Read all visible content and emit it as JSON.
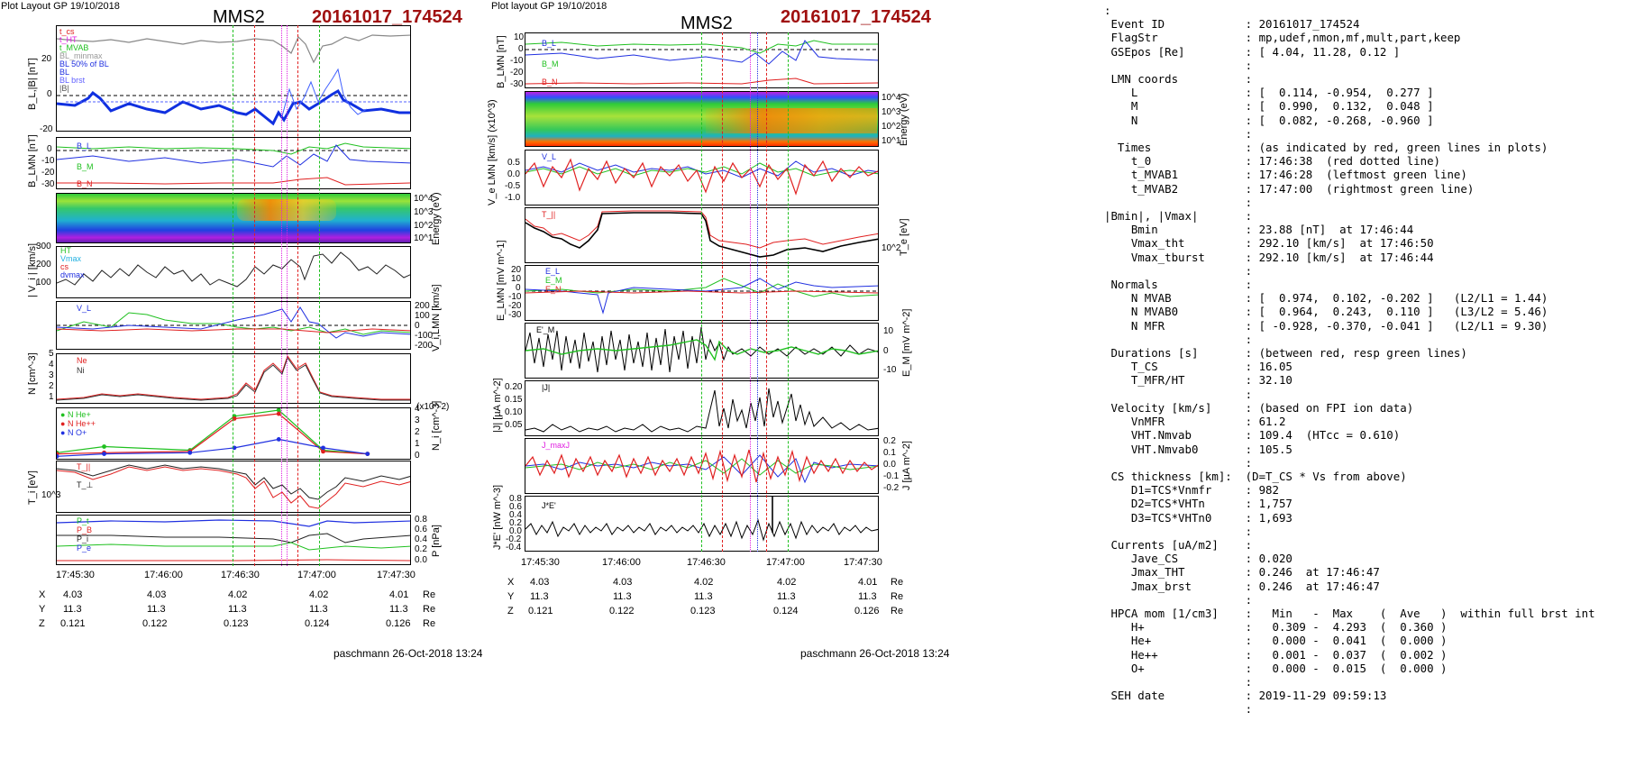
{
  "left": {
    "header": "Plot Layout GP 19/10/2018",
    "spacecraft": "MMS2",
    "event": "20161017_174524",
    "footer": "paschmann 26-Oct-2018 13:24",
    "panels": {
      "bl": {
        "ylabel": "B_L,|B| [nT]",
        "ticks": [
          "20",
          "0",
          "-20"
        ],
        "legend": [
          "t_cs",
          "t_HT",
          "t_MVAB",
          "BL_minmax",
          "BL 50% of BL",
          "BL",
          "BL brst",
          "|B|"
        ]
      },
      "blmn": {
        "ylabel": "B_LMN [nT]",
        "ticks": [
          "0",
          "-10",
          "-20",
          "-30"
        ],
        "labels": [
          "B_L",
          "B_M",
          "B_N"
        ]
      },
      "spec": {
        "ylabel": "Energy (eV)",
        "ticks": [
          "10^4",
          "10^3",
          "10^2",
          "10^1"
        ]
      },
      "vi": {
        "ylabel": "| V_i | [km/s]",
        "ticks": [
          "300",
          "200",
          "100"
        ],
        "legend": [
          "HT",
          "Vmax",
          "cs",
          "dvmax"
        ]
      },
      "vlmn": {
        "ylabel": "V_i,LMN [km/s]",
        "ticks": [
          "200",
          "100",
          "0",
          "-100",
          "-200"
        ],
        "labels": [
          "V_L"
        ]
      },
      "n": {
        "ylabel": "N [cm^-3]",
        "ticks": [
          "5",
          "4",
          "3",
          "2",
          "1"
        ],
        "legend": [
          "Ne",
          "Ni"
        ]
      },
      "hpca": {
        "ylabel": "N_i [cm^-3]",
        "ticks": [
          "4",
          "3",
          "2",
          "1",
          "0"
        ],
        "exp": "(x10^-2)",
        "legend": [
          "N  He+",
          "N  He++",
          "N  O+"
        ]
      },
      "ti": {
        "ylabel": "T_i [eV]",
        "ticks": [
          "10^3"
        ],
        "labels": [
          "T_||",
          "T_⊥"
        ]
      },
      "p": {
        "ylabel": "P [nPa]",
        "ticks": [
          "0.8",
          "0.6",
          "0.4",
          "0.2",
          "0.0"
        ],
        "labels": [
          "P_t",
          "P_B",
          "P_i",
          "P_e"
        ]
      }
    },
    "xticks": [
      "17:45:30",
      "17:46:00",
      "17:46:30",
      "17:47:00",
      "17:47:30"
    ],
    "pos": {
      "X": [
        "4.03",
        "4.03",
        "4.02",
        "4.02",
        "4.01",
        "Re"
      ],
      "Y": [
        "11.3",
        "11.3",
        "11.3",
        "11.3",
        "11.3",
        "Re"
      ],
      "Z": [
        "0.121",
        "0.122",
        "0.123",
        "0.124",
        "0.126",
        "Re"
      ]
    }
  },
  "middle": {
    "header": "Plot layout GP 19/10/2018",
    "spacecraft": "MMS2",
    "event": "20161017_174524",
    "footer": "paschmann 26-Oct-2018 13:24",
    "panels": {
      "blmn": {
        "ylabel": "B_LMN [nT]",
        "ticks": [
          "10",
          "0",
          "-10",
          "-20",
          "-30"
        ],
        "labels": [
          "B_L",
          "B_M",
          "B_N"
        ]
      },
      "spec": {
        "ylabel": "Energy (eV)",
        "ticks": [
          "10^4",
          "10^3",
          "10^2",
          "10^1"
        ]
      },
      "ve": {
        "ylabel": "V_e LMN [km/s] (x10^3)",
        "ticks": [
          "0.5",
          "0.0",
          "-0.5",
          "-1.0"
        ],
        "labels": [
          "V_L"
        ]
      },
      "te": {
        "ylabel": "T_e [eV]",
        "ticks": [
          "10^2"
        ],
        "labels": [
          "T_||"
        ]
      },
      "elmn": {
        "ylabel": "E_LMN [mV m^-1]",
        "ticks": [
          "20",
          "10",
          "0",
          "-10",
          "-20",
          "-30"
        ],
        "labels": [
          "E_L",
          "E_M",
          "E_N"
        ]
      },
      "em": {
        "ylabel": "E_M [mV m^-2]",
        "ticks": [
          "10",
          "0",
          "-10"
        ],
        "labels": [
          "E'_M"
        ]
      },
      "j": {
        "ylabel": "|J| [µA m^-2]",
        "ticks": [
          "0.20",
          "0.15",
          "0.10",
          "0.05"
        ],
        "labels": [
          "|J|"
        ]
      },
      "jlmn": {
        "ylabel": "J [µA m^-2]",
        "ticks": [
          "0.2",
          "0.1",
          "0.0",
          "-0.1",
          "-0.2"
        ],
        "labels": [
          "J_maxJ"
        ]
      },
      "je": {
        "ylabel": "J*E' [nW m^-3]",
        "ticks": [
          "0.8",
          "0.6",
          "0.4",
          "0.2",
          "0.0",
          "-0.2",
          "-0.4"
        ],
        "labels": [
          "J*E'"
        ]
      }
    },
    "xticks": [
      "17:45:30",
      "17:46:00",
      "17:46:30",
      "17:47:00",
      "17:47:30"
    ],
    "pos": {
      "X": [
        "4.03",
        "4.03",
        "4.02",
        "4.02",
        "4.01",
        "Re"
      ],
      "Y": [
        "11.3",
        "11.3",
        "11.3",
        "11.3",
        "11.3",
        "Re"
      ],
      "Z": [
        "0.121",
        "0.122",
        "0.123",
        "0.124",
        "0.126",
        "Re"
      ]
    }
  },
  "info_text": ":\n Event ID            : 20161017_174524\n FlagStr             : mp,udef,nmon,mf,mult,part,keep\n GSEpos [Re]         : [ 4.04, 11.28, 0.12 ]\n                     :\n LMN coords          :\n    L                : [  0.114, -0.954,  0.277 ]\n    M                : [  0.990,  0.132,  0.048 ]\n    N                : [  0.082, -0.268, -0.960 ]\n                     :\n  Times              : (as indicated by red, green lines in plots)\n    t_0              : 17:46:38  (red dotted line)\n    t_MVAB1          : 17:46:28  (leftmost green line)\n    t_MVAB2          : 17:47:00  (rightmost green line)\n                     :\n|Bmin|, |Vmax|       :\n    Bmin             : 23.88 [nT]  at 17:46:44\n    Vmax_tht         : 292.10 [km/s]  at 17:46:50\n    Vmax_tburst      : 292.10 [km/s]  at 17:46:44\n                     :\n Normals             :\n    N MVAB           : [  0.974,  0.102, -0.202 ]   (L2/L1 = 1.44)\n    N MVAB0          : [  0.964,  0.243,  0.110 ]   (L3/L2 = 5.46)\n    N MFR            : [ -0.928, -0.370, -0.041 ]   (L2/L1 = 9.30)\n                     :\n Durations [s]       : (between red, resp green lines)\n    T_CS             : 16.05\n    T_MFR/HT         : 32.10\n                     :\n Velocity [km/s]     : (based on FPI ion data)\n    VnMFR            : 61.2\n    VHT.Nmvab        : 109.4  (HTcc = 0.610)\n    VHT.Nmvab0       : 105.5\n                     :\n CS thickness [km]:  (D=T_CS * Vs from above)\n    D1=TCS*Vnmfr     : 982\n    D2=TCS*VHTn      : 1,757\n    D3=TCS*VHTn0     : 1,693\n                     :\n Currents [uA/m2]    :\n    Jave_CS          : 0.020\n    Jmax_THT         : 0.246  at 17:46:47\n    Jmax_brst        : 0.246  at 17:46:47\n                     :\n HPCA mom [1/cm3]    :   Min   -  Max    (  Ave   )  within full brst int\n    H+               :   0.309 -  4.293  (  0.360 )\n    He+              :   0.000 -  0.041  (  0.000 )\n    He++             :   0.001 -  0.037  (  0.002 )\n    O+               :   0.000 -  0.015  (  0.000 )\n                     :\n SEH date            : 2019-11-29 09:59:13\n                     :",
  "colors": {
    "event_title": "#a01010",
    "red": "#e02020",
    "green": "#20c020",
    "blue": "#2030e0",
    "magenta": "#e020e0",
    "black": "#000000"
  },
  "chart_data": [
    {
      "type": "line",
      "title": "MMS2 20161017_174524 (left column)",
      "x_range": [
        "17:45:30",
        "17:47:30"
      ],
      "event_lines": {
        "t_0": "17:46:38",
        "t_MVAB1": "17:46:28",
        "t_MVAB2": "17:47:00"
      },
      "panels": {
        "B_L_absB": {
          "ylim": [
            -20,
            40
          ],
          "series": [
            {
              "name": "|B|",
              "x": [
                0,
                0.2,
                0.5,
                0.6,
                0.62,
                0.75,
                0.85,
                1.0
              ],
              "y": [
                32,
                31,
                30,
                24,
                33,
                30,
                33,
                34
              ]
            },
            {
              "name": "BL",
              "x": [
                0,
                0.1,
                0.2,
                0.35,
                0.5,
                0.55,
                0.62,
                0.7,
                0.8,
                1.0
              ],
              "y": [
                -5,
                1,
                -8,
                -3,
                -8,
                -3,
                -12,
                5,
                -6,
                -10
              ]
            }
          ]
        },
        "Vi_abs": {
          "ylim": [
            0,
            300
          ],
          "series": [
            {
              "name": "|Vi|",
              "x": [
                0,
                0.2,
                0.4,
                0.5,
                0.6,
                0.65,
                0.7,
                0.8,
                1.0
              ],
              "y": [
                100,
                130,
                150,
                100,
                200,
                290,
                280,
                150,
                130
              ]
            }
          ]
        },
        "N": {
          "ylim": [
            0,
            5
          ],
          "series": [
            {
              "name": "Ne",
              "x": [
                0,
                0.2,
                0.5,
                0.6,
                0.62,
                0.7,
                0.8,
                1.0
              ],
              "y": [
                0.4,
                0.9,
                0.5,
                2.5,
                3.2,
                4.3,
                1.2,
                0.6
              ]
            },
            {
              "name": "Ni",
              "x": [
                0,
                0.2,
                0.5,
                0.6,
                0.62,
                0.7,
                0.8,
                1.0
              ],
              "y": [
                0.4,
                0.9,
                0.5,
                2.4,
                3.0,
                4.2,
                1.1,
                0.6
              ]
            }
          ]
        },
        "HPCA_Ni_x1e-2": {
          "ylim": [
            0,
            4
          ],
          "series": [
            {
              "name": "N He+",
              "x": [
                "17:45:30",
                "17:45:46",
                "17:46:15",
                "17:46:30",
                "17:46:45",
                "17:47:00",
                "17:47:15"
              ],
              "y": [
                0.5,
                1.0,
                0.7,
                3.5,
                4.0,
                0.7,
                0.4
              ]
            },
            {
              "name": "N He++",
              "x": [
                "17:45:30",
                "17:45:46",
                "17:46:15",
                "17:46:30",
                "17:46:45",
                "17:47:00",
                "17:47:15"
              ],
              "y": [
                0.4,
                0.5,
                0.6,
                3.3,
                3.7,
                0.6,
                0.4
              ]
            },
            {
              "name": "N O+",
              "x": [
                "17:45:30",
                "17:45:46",
                "17:46:15",
                "17:46:30",
                "17:46:45",
                "17:47:00",
                "17:47:15"
              ],
              "y": [
                0.2,
                0.4,
                0.5,
                0.9,
                1.6,
                0.9,
                0.4
              ]
            }
          ]
        }
      }
    },
    {
      "type": "line",
      "title": "MMS2 20161017_174524 (middle column)",
      "x_range": [
        "17:45:30",
        "17:47:30"
      ],
      "event_lines": {
        "t_0": "17:46:38",
        "t_MVAB1": "17:46:28",
        "t_MVAB2": "17:47:00"
      },
      "panels": {
        "J_abs": {
          "ylim": [
            0,
            0.22
          ],
          "units": "uA m^-2",
          "series": [
            {
              "name": "|J|",
              "peak": 0.246,
              "peak_time": "17:46:47"
            }
          ]
        }
      }
    }
  ]
}
